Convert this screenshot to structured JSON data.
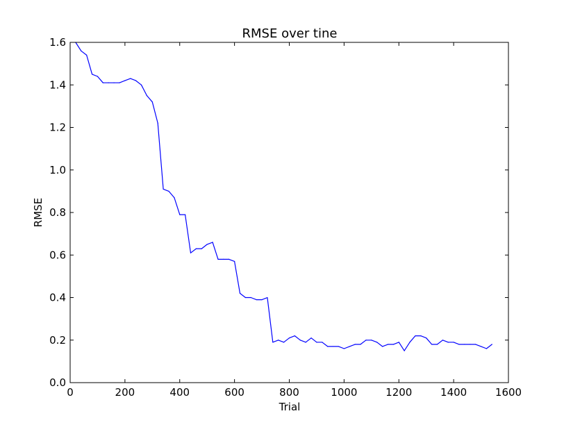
{
  "chart_data": {
    "type": "line",
    "title": "RMSE over tine",
    "xlabel": "Trial",
    "ylabel": "RMSE",
    "xlim": [
      0,
      1600
    ],
    "ylim": [
      0.0,
      1.6
    ],
    "xticks": [
      0,
      200,
      400,
      600,
      800,
      1000,
      1200,
      1400,
      1600
    ],
    "yticks": [
      0.0,
      0.2,
      0.4,
      0.6,
      0.8,
      1.0,
      1.2,
      1.4,
      1.6
    ],
    "xtick_labels": [
      "0",
      "200",
      "400",
      "600",
      "800",
      "1000",
      "1200",
      "1400",
      "1600"
    ],
    "ytick_labels": [
      "0.0",
      "0.2",
      "0.4",
      "0.6",
      "0.8",
      "1.0",
      "1.2",
      "1.4",
      "1.6"
    ],
    "grid": false,
    "series_color": "#0000ff",
    "series": [
      {
        "x": [
          20,
          40,
          60,
          80,
          100,
          120,
          140,
          160,
          180,
          200,
          220,
          240,
          260,
          280,
          300,
          320,
          340,
          360,
          380,
          400,
          420,
          440,
          460,
          480,
          500,
          520,
          540,
          560,
          580,
          600,
          620,
          640,
          660,
          680,
          700,
          720,
          740,
          760,
          780,
          800,
          820,
          840,
          860,
          880,
          900,
          920,
          940,
          960,
          980,
          1000,
          1020,
          1040,
          1060,
          1080,
          1100,
          1120,
          1140,
          1160,
          1180,
          1200,
          1220,
          1240,
          1260,
          1280,
          1300,
          1320,
          1340,
          1360,
          1380,
          1400,
          1420,
          1440,
          1460,
          1480,
          1500,
          1520,
          1540
        ],
        "values": [
          1.6,
          1.56,
          1.54,
          1.45,
          1.44,
          1.41,
          1.41,
          1.41,
          1.41,
          1.42,
          1.43,
          1.42,
          1.4,
          1.35,
          1.32,
          1.22,
          0.91,
          0.9,
          0.87,
          0.79,
          0.79,
          0.61,
          0.63,
          0.63,
          0.65,
          0.66,
          0.58,
          0.58,
          0.58,
          0.57,
          0.42,
          0.4,
          0.4,
          0.39,
          0.39,
          0.4,
          0.19,
          0.2,
          0.19,
          0.21,
          0.22,
          0.2,
          0.19,
          0.21,
          0.19,
          0.19,
          0.17,
          0.17,
          0.17,
          0.16,
          0.17,
          0.18,
          0.18,
          0.2,
          0.2,
          0.19,
          0.17,
          0.18,
          0.18,
          0.19,
          0.15,
          0.19,
          0.22,
          0.22,
          0.21,
          0.18,
          0.18,
          0.2,
          0.19,
          0.19,
          0.18,
          0.18,
          0.18,
          0.18,
          0.17,
          0.16,
          0.18
        ]
      }
    ]
  }
}
